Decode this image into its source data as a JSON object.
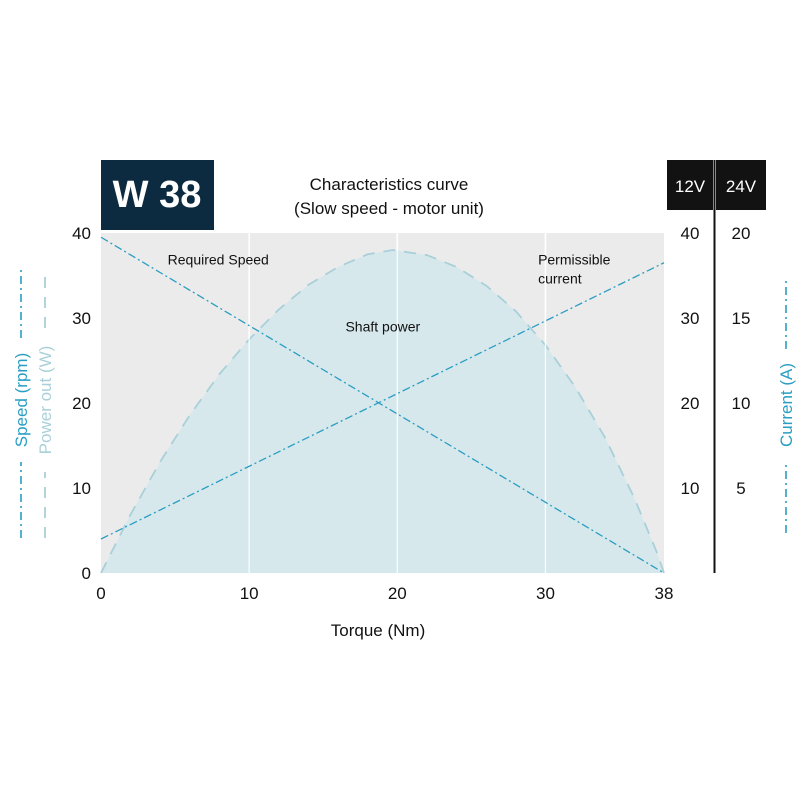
{
  "badge": {
    "text": "W 38",
    "bg": "#0c2b40",
    "fg": "#ffffff"
  },
  "voltage_headers": {
    "v12": "12V",
    "v24": "24V"
  },
  "chart_data": {
    "type": "line",
    "title": "Characteristics curve",
    "subtitle": "(Slow speed - motor unit)",
    "xlabel": "Torque (Nm)",
    "ylabel_left_speed": "Speed (rpm)",
    "ylabel_left_power": "Power out (W)",
    "ylabel_right": "Current (A)",
    "xlim": [
      0,
      38
    ],
    "ylim": [
      0,
      40
    ],
    "x_ticks": [
      0,
      10,
      20,
      30,
      38
    ],
    "y_ticks_left": [
      0,
      10,
      20,
      30,
      40
    ],
    "y_ticks_12v": [
      10,
      20,
      30,
      40
    ],
    "y_ticks_24v": [
      5,
      10,
      15,
      20
    ],
    "grid": true,
    "colors": {
      "plot_bg": "#ebebeb",
      "grid": "#ffffff",
      "area": "#d6e8ec",
      "area_edge": "#a9d0d9",
      "line": "#2a9ec2",
      "label_blue": "#2a9ec2",
      "label_lightblue": "#a9d0d9"
    },
    "series": [
      {
        "name": "Required Speed",
        "style": "dash-dot",
        "x": [
          0,
          38
        ],
        "y": [
          39.5,
          0
        ]
      },
      {
        "name": "Permissible current",
        "style": "dash-dot",
        "x": [
          0,
          38
        ],
        "y": [
          4,
          36.5
        ]
      },
      {
        "name": "Shaft power",
        "style": "dashed-area",
        "x": [
          0,
          2,
          4,
          6,
          8,
          10,
          12,
          14,
          16,
          18,
          19.7,
          22,
          24,
          26,
          28,
          30,
          32,
          34,
          36,
          37.5,
          38
        ],
        "y": [
          0,
          6.9,
          13.1,
          18.6,
          23.4,
          27.5,
          31.0,
          33.9,
          36.0,
          37.5,
          38.0,
          37.4,
          36.0,
          33.8,
          30.8,
          26.8,
          21.9,
          16.0,
          8.8,
          2.5,
          0
        ]
      }
    ],
    "annotations": [
      {
        "text": "Required Speed",
        "x": 4.5,
        "y": 36.3
      },
      {
        "text_lines": [
          "Permissible",
          "current"
        ],
        "x": 29.5,
        "y": 36.3
      },
      {
        "text": "Shaft power",
        "x": 16.5,
        "y": 28.4
      }
    ]
  }
}
